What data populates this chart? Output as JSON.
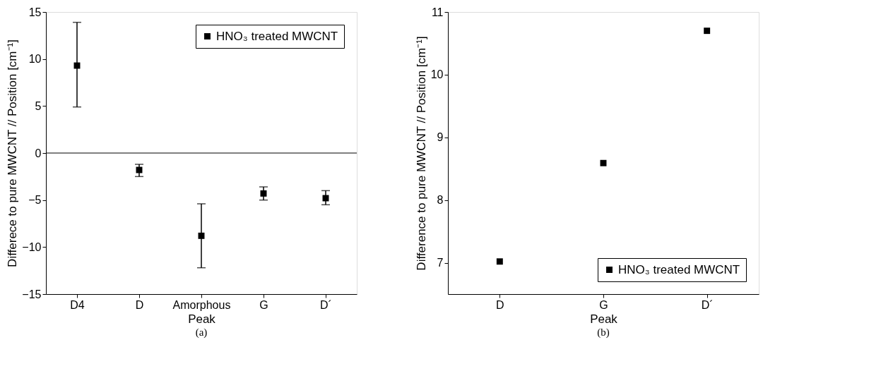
{
  "chart_data": [
    {
      "type": "scatter",
      "xlabel": "Peak",
      "ylabel": "Differece to pure MWCNT // Position [cm⁻¹]",
      "categories": [
        "D4",
        "D",
        "Amorphous",
        "G",
        "D´"
      ],
      "series": [
        {
          "name": "HNO₃ treated MWCNT",
          "color": "#000000",
          "values": [
            9.3,
            -1.8,
            -8.8,
            -4.3,
            -4.8
          ],
          "errors": [
            [
              4.9,
              13.9
            ],
            [
              -2.5,
              -1.2
            ],
            [
              -12.2,
              -5.4
            ],
            [
              -5.0,
              -3.6
            ],
            [
              -5.5,
              -4.0
            ]
          ]
        }
      ],
      "ylim": [
        -15,
        15
      ],
      "yticks": [
        -15,
        -10,
        -5,
        0,
        5,
        10,
        15
      ],
      "marker": "square",
      "legend": "top right",
      "grid": false,
      "ref_lines": [
        {
          "axis": "y",
          "value": 0,
          "color": "#000000"
        }
      ],
      "annotations": [
        "(a)"
      ]
    },
    {
      "type": "scatter",
      "xlabel": "Peak",
      "ylabel": "Difference to pure MWCNT // Position [cm⁻¹]",
      "categories": [
        "D",
        "G",
        "D´"
      ],
      "series": [
        {
          "name": "HNO₃ treated MWCNT",
          "color": "#000000",
          "values": [
            7.02,
            8.59,
            10.7
          ]
        }
      ],
      "ylim": [
        6.5,
        11
      ],
      "yticks": [
        7,
        8,
        9,
        10,
        11
      ],
      "marker": "square",
      "legend": "bottom right",
      "grid": false,
      "annotations": [
        "(b)"
      ]
    }
  ]
}
